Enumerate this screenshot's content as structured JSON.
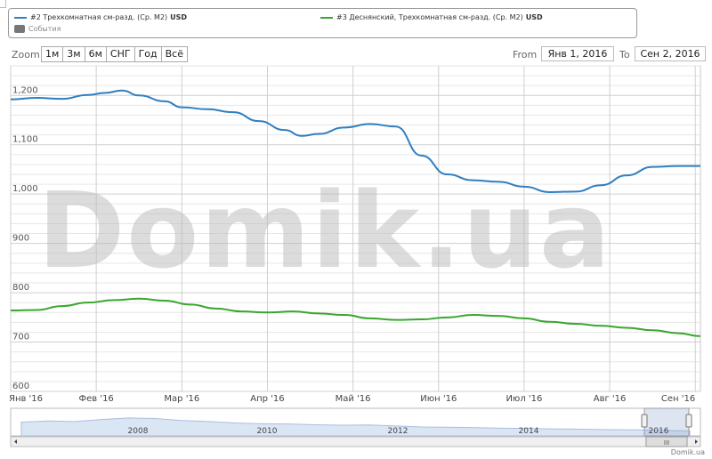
{
  "legend": {
    "series": [
      {
        "label": "#2 Трехкомнатная см-разд. (Ср. М2)",
        "unit": "USD",
        "color": "#2f7fc1"
      },
      {
        "label": "#3 Деснянский, Трехкомнатная см-разд. (Ср. М2)",
        "unit": "USD",
        "color": "#3aa62f"
      }
    ],
    "events": "События"
  },
  "zoom": {
    "label": "Zoom",
    "buttons": [
      "1м",
      "3м",
      "6м",
      "СНГ",
      "Год",
      "Всё"
    ]
  },
  "range": {
    "from_label": "From",
    "from_value": "Янв 1, 2016",
    "to_label": "To",
    "to_value": "Сен 2, 2016"
  },
  "watermark": "Domik.ua",
  "credit": "Domik.ua",
  "navigator": {
    "years": [
      "2008",
      "2010",
      "2012",
      "2014",
      "2016"
    ],
    "scroll_grip": "III"
  },
  "chart_data": {
    "type": "line",
    "x_ticks": [
      "Янв '16",
      "Фев '16",
      "Мар '16",
      "Апр '16",
      "Май '16",
      "Июн '16",
      "Июл '16",
      "Авг '16",
      "Сен '16"
    ],
    "y_ticks": [
      "600",
      "700",
      "800",
      "900",
      "1,000",
      "1,100",
      "1,200"
    ],
    "ylim": [
      600,
      1260
    ],
    "xlim": [
      0,
      8.06
    ],
    "grid": true,
    "series": [
      {
        "name": "#2 Трехкомнатная см-разд. (Ср. М2)",
        "color": "#2f7fc1",
        "points": [
          [
            0,
            1192
          ],
          [
            0.3,
            1195
          ],
          [
            0.6,
            1193
          ],
          [
            0.9,
            1201
          ],
          [
            1.1,
            1205
          ],
          [
            1.3,
            1210
          ],
          [
            1.5,
            1200
          ],
          [
            1.8,
            1188
          ],
          [
            2.0,
            1176
          ],
          [
            2.3,
            1172
          ],
          [
            2.6,
            1166
          ],
          [
            2.9,
            1148
          ],
          [
            3.2,
            1130
          ],
          [
            3.4,
            1118
          ],
          [
            3.6,
            1122
          ],
          [
            3.9,
            1135
          ],
          [
            4.2,
            1142
          ],
          [
            4.5,
            1137
          ],
          [
            4.8,
            1078
          ],
          [
            5.1,
            1040
          ],
          [
            5.4,
            1028
          ],
          [
            5.7,
            1025
          ],
          [
            6.0,
            1015
          ],
          [
            6.3,
            1004
          ],
          [
            6.6,
            1005
          ],
          [
            6.9,
            1018
          ],
          [
            7.2,
            1038
          ],
          [
            7.5,
            1055
          ],
          [
            7.8,
            1057
          ],
          [
            8.06,
            1057
          ]
        ]
      },
      {
        "name": "#3 Деснянский, Трехкомнатная см-разд. (Ср. М2)",
        "color": "#3aa62f",
        "points": [
          [
            0,
            764
          ],
          [
            0.3,
            765
          ],
          [
            0.6,
            773
          ],
          [
            0.9,
            780
          ],
          [
            1.2,
            785
          ],
          [
            1.5,
            788
          ],
          [
            1.8,
            784
          ],
          [
            2.1,
            776
          ],
          [
            2.4,
            768
          ],
          [
            2.7,
            762
          ],
          [
            3.0,
            760
          ],
          [
            3.3,
            762
          ],
          [
            3.6,
            758
          ],
          [
            3.9,
            755
          ],
          [
            4.2,
            748
          ],
          [
            4.5,
            745
          ],
          [
            4.8,
            746
          ],
          [
            5.1,
            750
          ],
          [
            5.4,
            755
          ],
          [
            5.7,
            753
          ],
          [
            6.0,
            748
          ],
          [
            6.3,
            741
          ],
          [
            6.6,
            737
          ],
          [
            6.9,
            733
          ],
          [
            7.2,
            729
          ],
          [
            7.5,
            724
          ],
          [
            7.8,
            718
          ],
          [
            8.06,
            712
          ]
        ]
      }
    ],
    "navigator_series": [
      0.55,
      0.6,
      0.58,
      0.66,
      0.72,
      0.7,
      0.62,
      0.58,
      0.52,
      0.49,
      0.48,
      0.45,
      0.43,
      0.44,
      0.4,
      0.36,
      0.35,
      0.33,
      0.31,
      0.3,
      0.28,
      0.27,
      0.25,
      0.24,
      0.22,
      0.2
    ]
  }
}
